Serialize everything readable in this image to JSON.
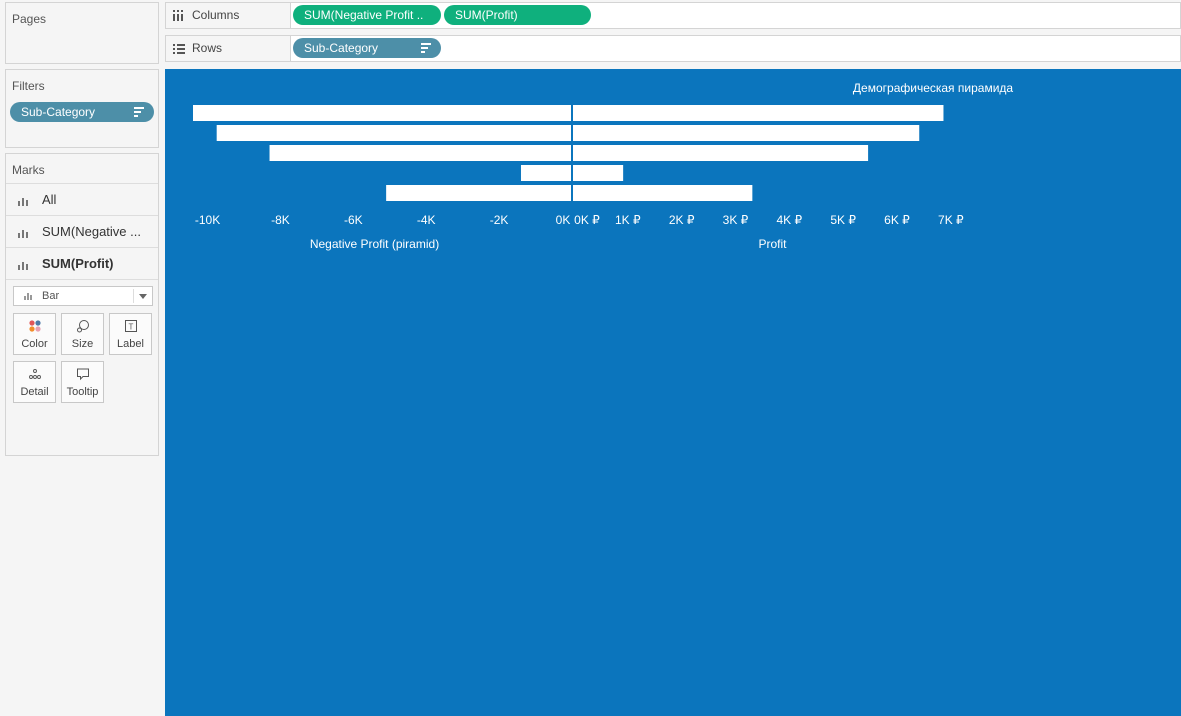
{
  "pages_panel": {
    "title": "Pages"
  },
  "filters_panel": {
    "title": "Filters",
    "pills": [
      {
        "label": "Sub-Category"
      }
    ]
  },
  "marks_panel": {
    "title": "Marks",
    "rows": [
      {
        "label": "All"
      },
      {
        "label": "SUM(Negative ..."
      },
      {
        "label": "SUM(Profit)"
      }
    ],
    "mark_type": "Bar",
    "buttons": [
      {
        "label": "Color",
        "icon": "color-icon"
      },
      {
        "label": "Size",
        "icon": "size-icon"
      },
      {
        "label": "Label",
        "icon": "label-icon"
      },
      {
        "label": "Detail",
        "icon": "detail-icon"
      },
      {
        "label": "Tooltip",
        "icon": "tooltip-icon"
      }
    ]
  },
  "columns_shelf": {
    "label": "Columns",
    "pills": [
      {
        "label": "SUM(Negative Profit ..",
        "color": "#0fb07d"
      },
      {
        "label": "SUM(Profit)",
        "color": "#0fb07d"
      }
    ]
  },
  "rows_shelf": {
    "label": "Rows",
    "pills": [
      {
        "label": "Sub-Category",
        "color": "#4d8fa8"
      }
    ]
  },
  "colors": {
    "viz_background": "#0b75bd",
    "bars": "#ffffff",
    "dimension_pill": "#4d8fa8",
    "measure_pill": "#0fb07d"
  },
  "chart_data": {
    "type": "bar",
    "title": "Демографическая пирамида",
    "panels": [
      {
        "name": "negative",
        "xlabel": "Negative Profit (piramid)",
        "xlim": [
          -10400,
          0
        ],
        "ticks": [
          -10000,
          -8000,
          -6000,
          -4000,
          -2000,
          0
        ],
        "tick_labels": [
          "-10K",
          "-8K",
          "-6K",
          "-4K",
          "-2K",
          "0K"
        ]
      },
      {
        "name": "positive",
        "xlabel": "Profit",
        "xlim": [
          0,
          7300
        ],
        "ticks": [
          0,
          1000,
          2000,
          3000,
          4000,
          5000,
          6000,
          7000
        ],
        "tick_labels": [
          "0K ₽",
          "1K ₽",
          "2K ₽",
          "3K ₽",
          "4K ₽",
          "5K ₽",
          "6K ₽",
          "7K ₽"
        ]
      }
    ],
    "series": [
      {
        "values": [
          -10400,
          -9750,
          -8300,
          -1400,
          -5100
        ]
      },
      {
        "values": [
          6900,
          6450,
          5500,
          950,
          3350
        ]
      }
    ],
    "grid": false
  }
}
